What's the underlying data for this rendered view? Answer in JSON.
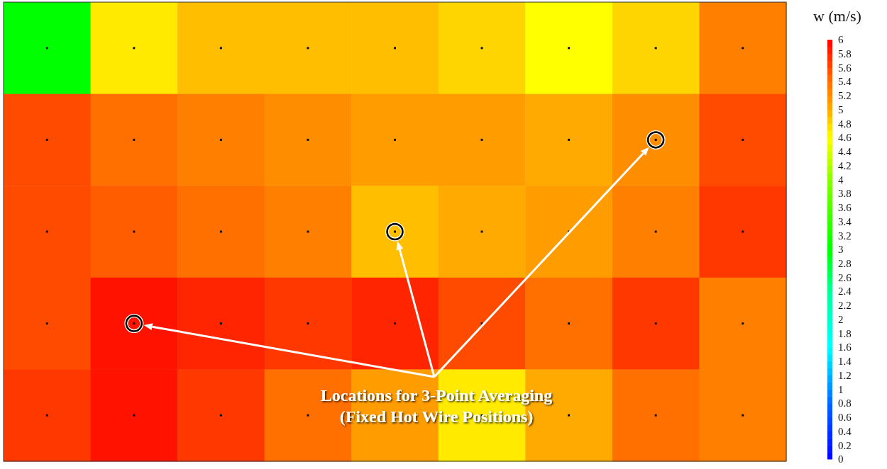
{
  "chart_data": {
    "type": "heatmap",
    "clabel": "w (m/s)",
    "categories": [
      null,
      null,
      null,
      null,
      null,
      null,
      null,
      null,
      null
    ],
    "y_categories": [
      null,
      null,
      null,
      null,
      null
    ],
    "cells": [
      [
        3.0,
        4.7,
        4.9,
        4.9,
        4.9,
        4.8,
        4.6,
        4.8,
        5.3
      ],
      [
        5.6,
        5.4,
        5.3,
        5.2,
        5.1,
        5.1,
        5.0,
        5.2,
        5.6
      ],
      [
        5.6,
        5.5,
        5.4,
        5.3,
        4.9,
        5.0,
        5.1,
        5.3,
        5.7
      ],
      [
        5.6,
        5.9,
        5.8,
        5.7,
        5.8,
        5.6,
        5.4,
        5.7,
        5.3
      ],
      [
        5.7,
        5.9,
        5.7,
        5.4,
        5.1,
        4.7,
        5.0,
        5.4,
        5.3
      ]
    ],
    "clim": [
      0,
      6
    ],
    "cticks": [
      0,
      0.2,
      0.4,
      0.6,
      0.8,
      1,
      1.2,
      1.4,
      1.6,
      1.8,
      2,
      2.2,
      2.4,
      2.6,
      2.8,
      3,
      3.2,
      3.4,
      3.6,
      3.8,
      4,
      4.2,
      4.4,
      4.6,
      4.8,
      5,
      5.2,
      5.4,
      5.6,
      5.8,
      6
    ],
    "annotations": [
      "Locations for 3-Point Averaging",
      "(Fixed Hot Wire Positions)"
    ]
  }
}
